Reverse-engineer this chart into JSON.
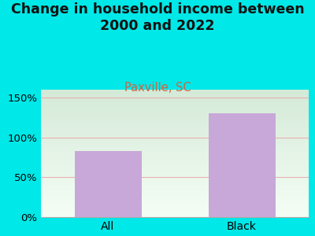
{
  "categories": [
    "All",
    "Black"
  ],
  "values": [
    83,
    130
  ],
  "bar_color": "#c8a8d8",
  "title_line1": "Change in household income between",
  "title_line2": "2000 and 2022",
  "subtitle": "Paxville, SC",
  "title_fontsize": 12.5,
  "subtitle_fontsize": 10.5,
  "tick_fontsize": 9.5,
  "xlabel_fontsize": 10,
  "figure_bg": "#00e8e8",
  "axes_bg_top_color": "#d4ead8",
  "axes_bg_bottom_color": "#f5fef5",
  "subtitle_color": "#cc6644",
  "title_color": "#111111",
  "grid_color": "#e8b0b0",
  "yticks": [
    0,
    50,
    100,
    150
  ],
  "ylim": [
    0,
    160
  ],
  "bar_width": 0.5
}
